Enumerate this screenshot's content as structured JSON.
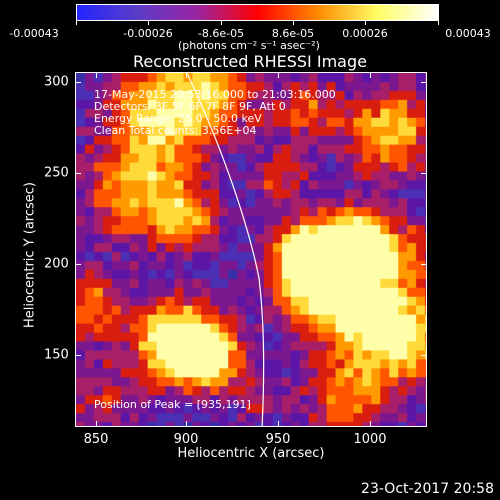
{
  "colorbar": {
    "ticks": [
      "-0.00043",
      "-0.00026",
      "-8.6e-05",
      "8.6e-05",
      "0.00026",
      "0.00043"
    ],
    "units": "(photons cm⁻² s⁻¹ asec⁻²)",
    "colors": [
      "#2326ff",
      "#5b3cc8",
      "#9a25a2",
      "#ff0000",
      "#ff8a00",
      "#ffff66",
      "#ffffff"
    ]
  },
  "plot": {
    "title": "Reconstructed RHESSI Image",
    "info_lines": [
      "17-May-2015 20:53:16.000 to 21:03:16.000",
      "Detectors: 3F 5F 6F 7F 8F 9F, Att 0",
      "Energy Range: 25.0 - 50.0 keV",
      "Clean      Total counts: 3.56E+04"
    ],
    "peak_label": "Position of Peak = [935,191]",
    "x_axis": {
      "title": "Heliocentric X (arcsec)",
      "ticks": [
        "850",
        "900",
        "950",
        "1000"
      ],
      "range": [
        840,
        1030
      ]
    },
    "y_axis": {
      "title": "Heliocentric Y (arcsec)",
      "ticks": [
        "150",
        "200",
        "250",
        "300"
      ],
      "range": [
        110,
        305
      ]
    },
    "limb_line": "white"
  },
  "footer": {
    "timestamp": "23-Oct-2017 20:58"
  }
}
